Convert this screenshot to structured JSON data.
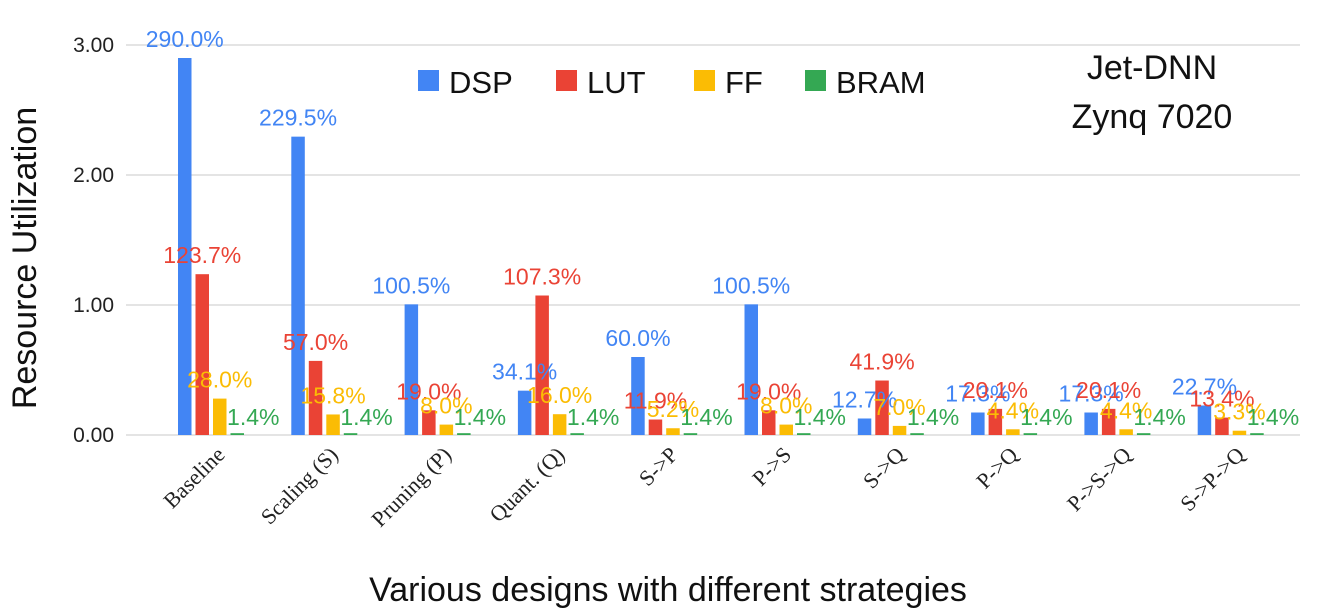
{
  "chart_data": {
    "type": "bar",
    "annotation_lines": [
      "Jet-DNN",
      "Zynq 7020"
    ],
    "xlabel": "Various designs with different strategies",
    "ylabel": "Resource Utilization",
    "ylim": [
      0,
      3
    ],
    "yticks": [
      "0.00",
      "1.00",
      "2.00",
      "3.00"
    ],
    "ytick_values": [
      0,
      1,
      2,
      3
    ],
    "grid": true,
    "legend_position": "top-center",
    "categories": [
      "Baseline",
      "Scaling (S)",
      "Pruning (P)",
      "Quant. (Q)",
      "S->P",
      "P->S",
      "S->Q",
      "P->Q",
      "P->S->Q",
      "S->P->Q"
    ],
    "series": [
      {
        "name": "DSP",
        "color": "#4285f4",
        "values": [
          2.9,
          2.295,
          1.005,
          0.341,
          0.6,
          1.005,
          0.127,
          0.173,
          0.173,
          0.227
        ],
        "labels": [
          "290.0%",
          "229.5%",
          "100.5%",
          "34.1%",
          "60.0%",
          "100.5%",
          "12.7%",
          "17.3%",
          "17.3%",
          "22.7%"
        ]
      },
      {
        "name": "LUT",
        "color": "#ea4335",
        "values": [
          1.237,
          0.57,
          0.19,
          1.073,
          0.119,
          0.19,
          0.419,
          0.201,
          0.201,
          0.134
        ],
        "labels": [
          "123.7%",
          "57.0%",
          "19.0%",
          "107.3%",
          "11.9%",
          "19.0%",
          "41.9%",
          "20.1%",
          "20.1%",
          "13.4%"
        ]
      },
      {
        "name": "FF",
        "color": "#fbbc04",
        "values": [
          0.28,
          0.158,
          0.08,
          0.16,
          0.052,
          0.08,
          0.07,
          0.044,
          0.044,
          0.033
        ],
        "labels": [
          "28.0%",
          "15.8%",
          "8.0%",
          "16.0%",
          "5.2%",
          "8.0%",
          "7.0%",
          "4.4%",
          "4.4%",
          "3.3%"
        ]
      },
      {
        "name": "BRAM",
        "color": "#34a853",
        "values": [
          0.014,
          0.014,
          0.014,
          0.014,
          0.014,
          0.014,
          0.014,
          0.014,
          0.014,
          0.014
        ],
        "labels": [
          "1.4%",
          "1.4%",
          "1.4%",
          "1.4%",
          "1.4%",
          "1.4%",
          "1.4%",
          "1.4%",
          "1.4%",
          "1.4%"
        ]
      }
    ]
  }
}
